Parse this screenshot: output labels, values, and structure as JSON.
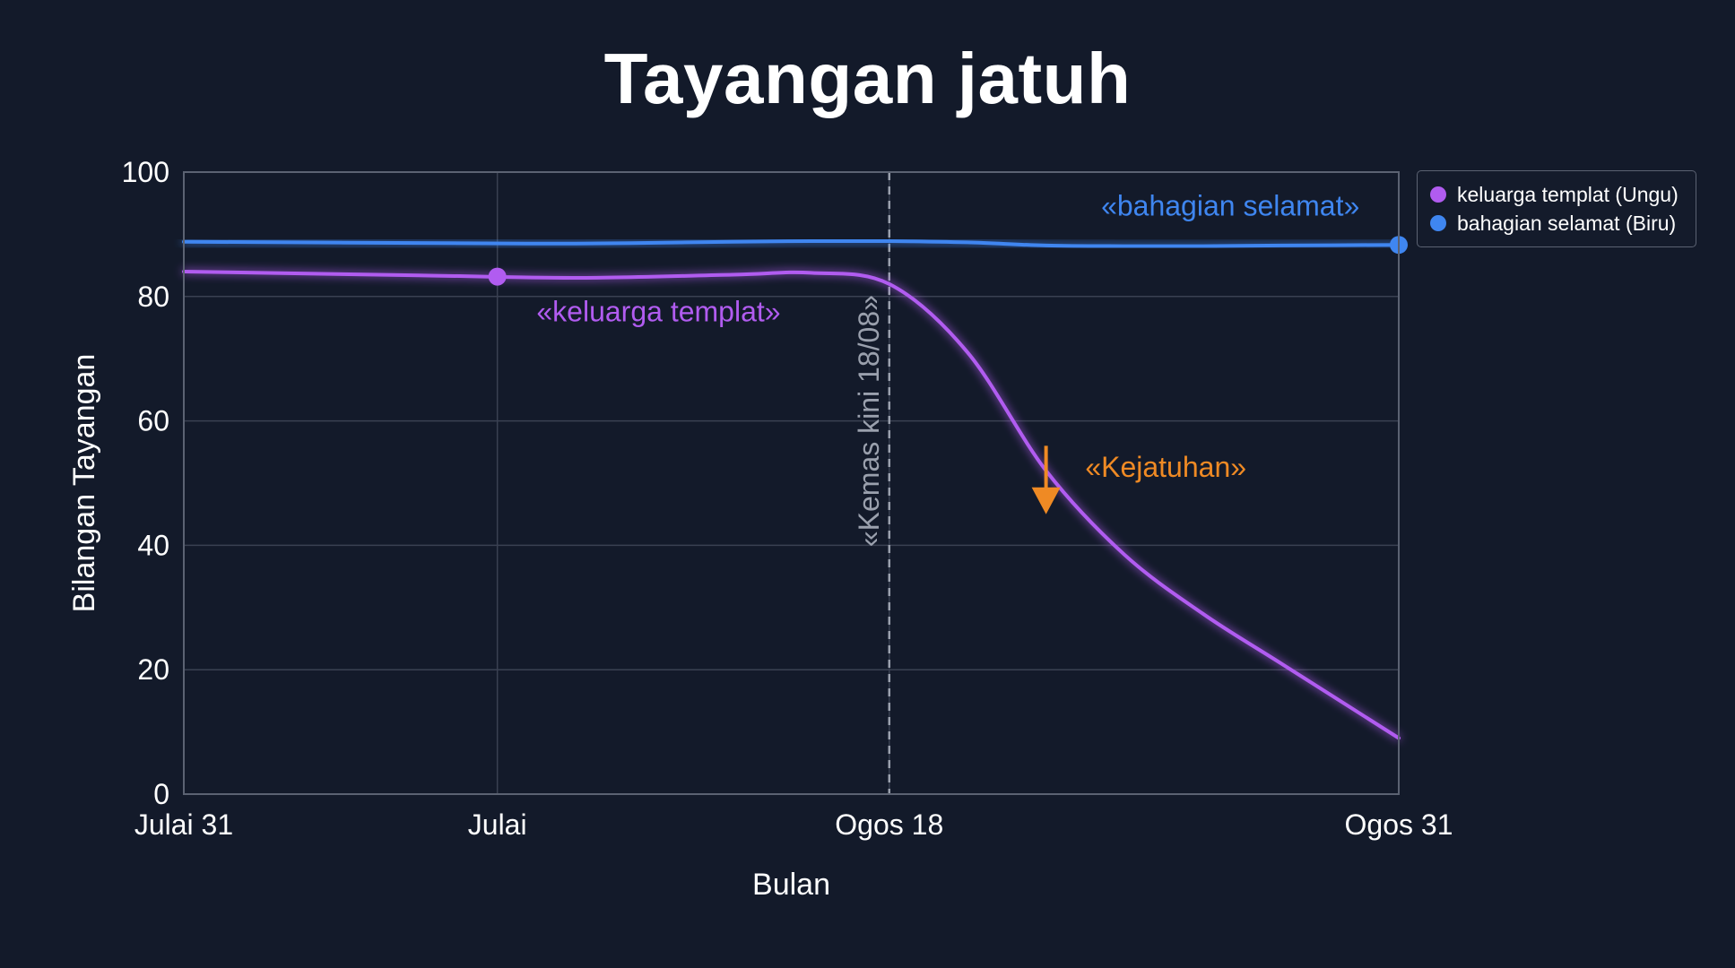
{
  "chart_data": {
    "type": "line",
    "title": "Tayangan jatuh",
    "xlabel": "Bulan",
    "ylabel": "Bilangan Tayangan",
    "x": [
      "2024-07-31",
      "2024-08-06",
      "2024-08-10",
      "2024-08-14",
      "2024-08-16",
      "2024-08-18",
      "2024-08-20",
      "2024-08-22",
      "2024-08-24",
      "2024-08-26",
      "2024-08-28",
      "2024-08-31"
    ],
    "xlim": [
      "2024-07-31",
      "2024-08-31"
    ],
    "x_ticks": [
      {
        "x": "2024-07-31",
        "label": "Julai 31"
      },
      {
        "x": "2024-08-08",
        "label": "Julai"
      },
      {
        "x": "2024-08-18",
        "label": "Ogos 18"
      },
      {
        "x": "2024-08-31",
        "label": "Ogos 31"
      }
    ],
    "ylim": [
      0,
      100
    ],
    "y_ticks": [
      0,
      20,
      40,
      60,
      80,
      100
    ],
    "grid": true,
    "legend_position": "top-right, outside plot",
    "series": [
      {
        "name": "keluarga templat (Ungu)",
        "color": "#b15cf0",
        "values": [
          84,
          83.4,
          83,
          83.5,
          83.8,
          82,
          71,
          52,
          38.5,
          29,
          21,
          9
        ]
      },
      {
        "name": "bahagian selamat (Biru)",
        "color": "#3f86f0",
        "values": [
          88.8,
          88.6,
          88.5,
          88.8,
          88.9,
          88.9,
          88.7,
          88.2,
          88.1,
          88.1,
          88.2,
          88.3
        ]
      }
    ],
    "markers": [
      {
        "series": "keluarga templat (Ungu)",
        "x": "2024-08-08",
        "y": 83.2
      },
      {
        "series": "bahagian selamat (Biru)",
        "x": "2024-08-31",
        "y": 88.3
      }
    ],
    "vertical_line": {
      "x": "2024-08-18",
      "label": "«Kemas kini 18/08»",
      "color": "#9aa0ad"
    },
    "annotations": [
      {
        "text": "«keluarga templat»",
        "color": "#b15cf0",
        "x": "2024-08-09",
        "y": 76
      },
      {
        "text": "«bahagian selamat»",
        "color": "#3f86f0",
        "x": "2024-08-30",
        "y": 93
      },
      {
        "text": "«Kejatuhan»",
        "color": "#ef8a24",
        "x": "2024-08-23",
        "y": 51
      }
    ],
    "arrow": {
      "color": "#ef8a24",
      "x": "2024-08-22",
      "y_from": 56,
      "y_to": 45
    }
  }
}
